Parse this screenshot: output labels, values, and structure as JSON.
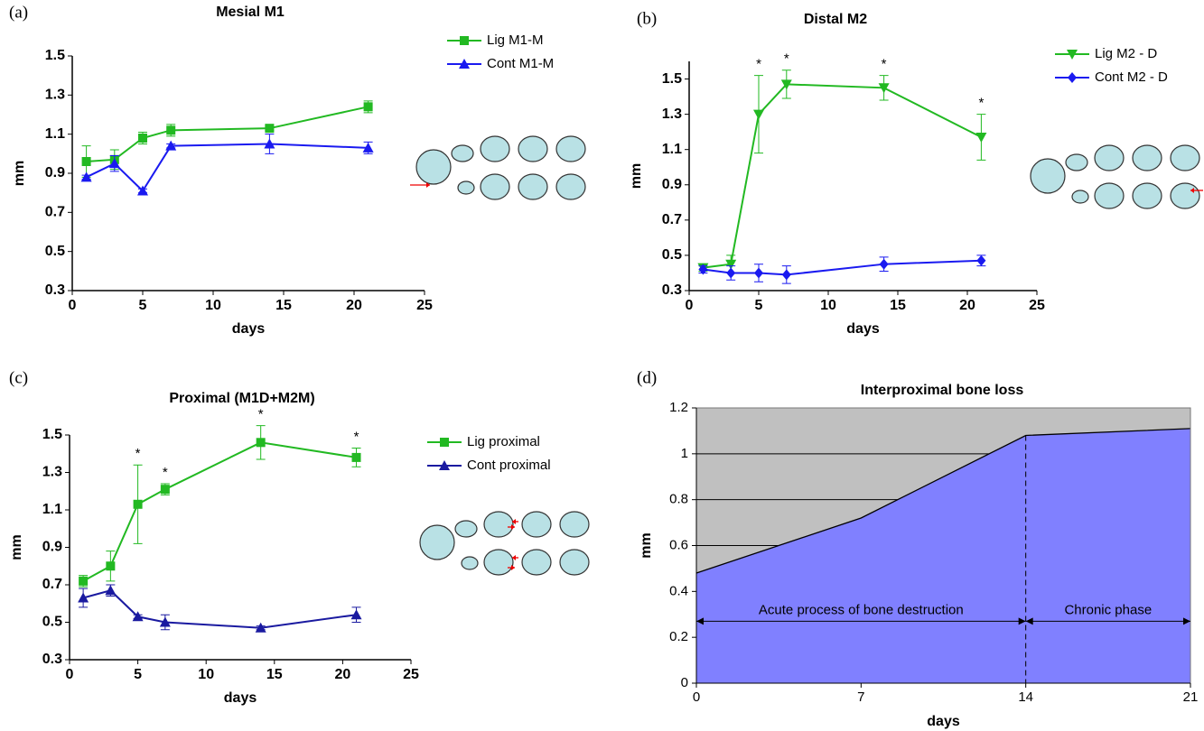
{
  "chart_data": [
    {
      "type": "line",
      "panel": "(a)",
      "title": "Mesial M1",
      "x_label": "days",
      "y_label": "mm",
      "x": [
        1,
        3,
        5,
        7,
        14,
        21
      ],
      "xlim": [
        0,
        25
      ],
      "xticks": [
        0,
        5,
        10,
        15,
        20,
        25
      ],
      "ylim": [
        0.3,
        1.5
      ],
      "yticks": [
        0.3,
        0.5,
        0.7,
        0.9,
        1.1,
        1.3,
        1.5
      ],
      "series": [
        {
          "name": "Lig M1-M",
          "color": "#22b922",
          "marker": "square",
          "values": [
            0.96,
            0.97,
            1.08,
            1.12,
            1.13,
            1.24
          ],
          "errors": [
            0.08,
            0.05,
            0.03,
            0.03,
            0.01,
            0.03
          ]
        },
        {
          "name": "Cont M1-M",
          "color": "#1a1af0",
          "marker": "triangle-up",
          "values": [
            0.88,
            0.95,
            0.81,
            1.04,
            1.05,
            1.03
          ],
          "errors": [
            0.01,
            0.04,
            0.01,
            0.01,
            0.05,
            0.03
          ]
        }
      ]
    },
    {
      "type": "line",
      "panel": "(b)",
      "title": "Distal M2",
      "x_label": "days",
      "y_label": "mm",
      "x": [
        1,
        3,
        5,
        7,
        14,
        21
      ],
      "xlim": [
        0,
        25
      ],
      "xticks": [
        0,
        5,
        10,
        15,
        20,
        25
      ],
      "ylim": [
        0.3,
        1.6
      ],
      "yticks": [
        0.3,
        0.5,
        0.7,
        0.9,
        1.1,
        1.3,
        1.5
      ],
      "markers": [
        null,
        null,
        "*",
        "*",
        "*",
        "*"
      ],
      "series": [
        {
          "name": "Lig M2 - D",
          "color": "#22b922",
          "marker": "triangle-down",
          "values": [
            0.43,
            0.45,
            1.3,
            1.47,
            1.45,
            1.17
          ],
          "errors": [
            0.02,
            0.05,
            0.22,
            0.08,
            0.07,
            0.13
          ]
        },
        {
          "name": "Cont M2 - D",
          "color": "#1a1af0",
          "marker": "diamond",
          "values": [
            0.42,
            0.4,
            0.4,
            0.39,
            0.45,
            0.47
          ],
          "errors": [
            0.02,
            0.04,
            0.05,
            0.05,
            0.04,
            0.03
          ]
        }
      ]
    },
    {
      "type": "line",
      "panel": "(c)",
      "title": "Proximal (M1D+M2M)",
      "x_label": "days",
      "y_label": "mm",
      "x": [
        1,
        3,
        5,
        7,
        14,
        21
      ],
      "xlim": [
        0,
        25
      ],
      "xticks": [
        0,
        5,
        10,
        15,
        20,
        25
      ],
      "ylim": [
        0.3,
        1.5
      ],
      "yticks": [
        0.3,
        0.5,
        0.7,
        0.9,
        1.1,
        1.3,
        1.5
      ],
      "markers": [
        null,
        null,
        "*",
        "*",
        "*",
        "*"
      ],
      "series": [
        {
          "name": "Lig proximal",
          "color": "#22b922",
          "marker": "square",
          "values": [
            0.72,
            0.8,
            1.13,
            1.21,
            1.46,
            1.38
          ],
          "errors": [
            0.03,
            0.08,
            0.21,
            0.03,
            0.09,
            0.05
          ]
        },
        {
          "name": "Cont proximal",
          "color": "#1a1aa0",
          "marker": "triangle-up",
          "values": [
            0.63,
            0.67,
            0.53,
            0.5,
            0.47,
            0.54
          ],
          "errors": [
            0.05,
            0.03,
            0.01,
            0.04,
            0.01,
            0.04
          ]
        }
      ]
    },
    {
      "type": "area",
      "panel": "(d)",
      "title": "Interproximal bone loss",
      "x_label": "days",
      "y_label": "mm",
      "x": [
        0,
        7,
        14,
        21
      ],
      "xlim": [
        0,
        21
      ],
      "xticks": [
        0,
        7,
        14,
        21
      ],
      "ylim": [
        0,
        1.2
      ],
      "yticks": [
        0,
        0.2,
        0.4,
        0.6,
        0.8,
        1,
        1.2
      ],
      "grid": true,
      "color": "#8080ff",
      "background": "#c0c0c0",
      "values": [
        0.48,
        0.72,
        1.08,
        1.11
      ],
      "divider_x": 14,
      "annotations": [
        "Acute process of bone destruction",
        "Chronic phase"
      ]
    }
  ]
}
